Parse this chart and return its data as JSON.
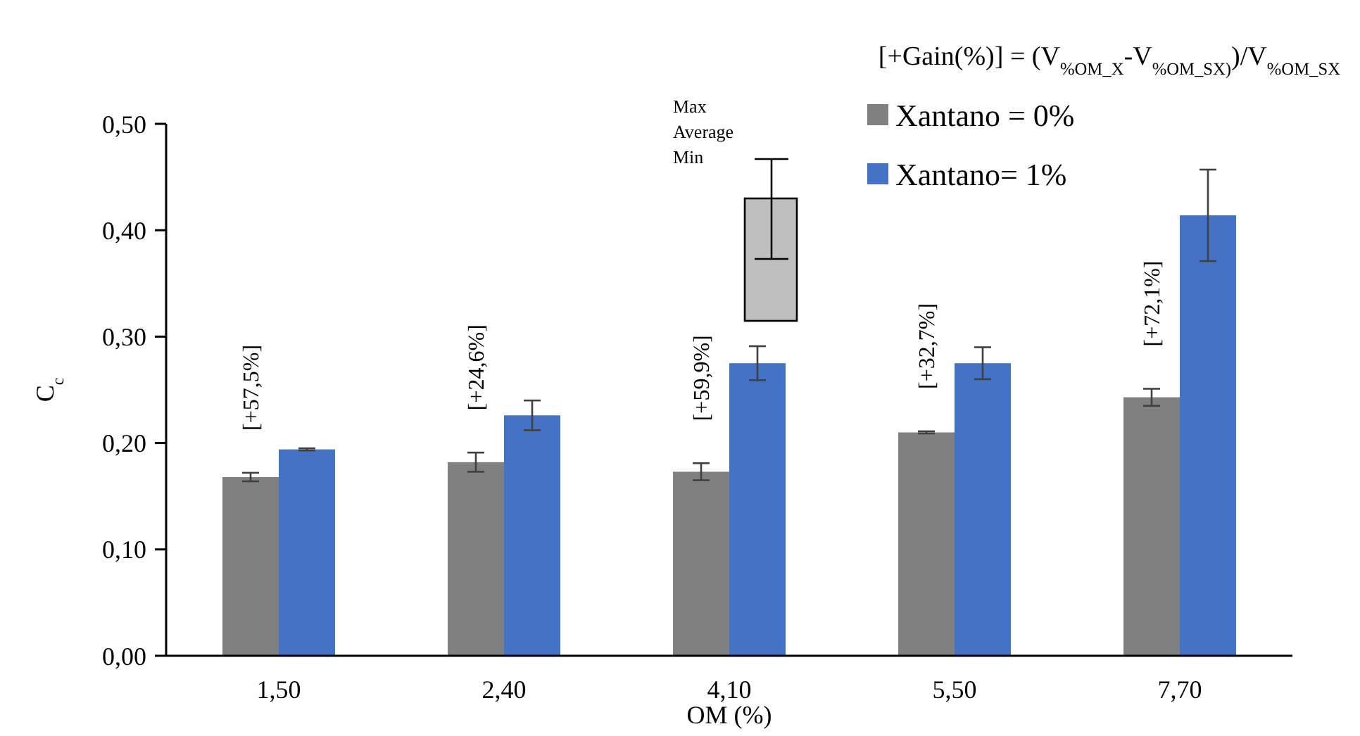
{
  "chart_data": {
    "type": "bar",
    "categories": [
      "1,50",
      "2,40",
      "4,10",
      "5,50",
      "7,70"
    ],
    "series": [
      {
        "name": "Xantano = 0%",
        "color": "#808080",
        "values": [
          0.168,
          0.182,
          0.173,
          0.21,
          0.243
        ],
        "errors": [
          0.004,
          0.009,
          0.008,
          0.001,
          0.008
        ]
      },
      {
        "name": "Xantano= 1%",
        "color": "#4472c4",
        "values": [
          0.194,
          0.226,
          0.275,
          0.275,
          0.414
        ],
        "errors": [
          0.001,
          0.014,
          0.016,
          0.015,
          0.043
        ]
      }
    ],
    "xlabel": "OM (%)",
    "ylabel": "C$_{c}$",
    "ylim": [
      0,
      0.5
    ],
    "yticks": [
      {
        "value": 0,
        "label": "0,00"
      },
      {
        "value": 0.1,
        "label": "0,10"
      },
      {
        "value": 0.2,
        "label": "0,20"
      },
      {
        "value": 0.3,
        "label": "0,30"
      },
      {
        "value": 0.4,
        "label": "0,40"
      },
      {
        "value": 0.5,
        "label": "0,50"
      }
    ],
    "legend": "top right",
    "grid": false,
    "annotations": [
      "[+Gain(%)]  = (V$_{%OM_X}$-V$_{%OM_SX)}$)/V$_{%OM_SX}$",
      "Max",
      "Average",
      "Min",
      "[+57,5%]",
      "[+24,6%]",
      "[+59,9%]",
      "[+32,7%]",
      "[+72,1%]"
    ]
  }
}
